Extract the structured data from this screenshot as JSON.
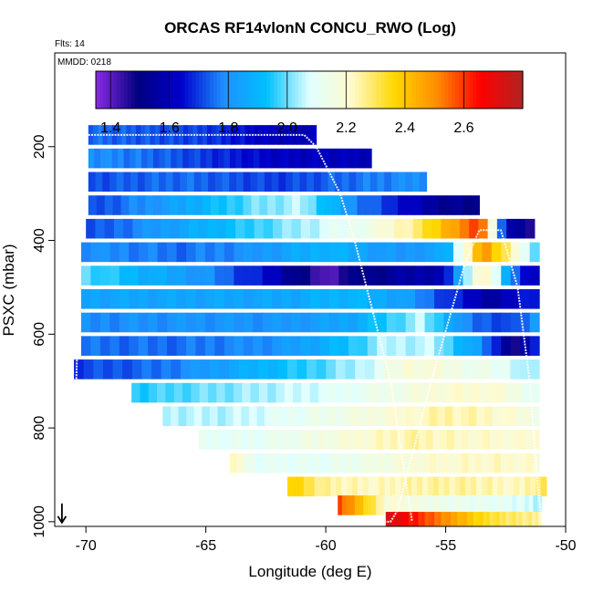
{
  "chart_data": {
    "type": "heatmap",
    "title": "ORCAS RF14vlonN CONCU_RWO (Log)",
    "flights_label": "Flts: 14",
    "date_label": "MMDD: 0218",
    "xlabel": "Longitude (deg E)",
    "ylabel": "PSXC (mbar)",
    "xlim": [
      -71.3,
      -50
    ],
    "ylim": [
      1010,
      0
    ],
    "xticks": [
      -70,
      -65,
      -60,
      -55,
      -50
    ],
    "yticks": [
      200,
      400,
      600,
      800,
      1000
    ],
    "colorbar": {
      "range": [
        1.35,
        2.8
      ],
      "ticks": [
        1.4,
        1.6,
        1.8,
        2.0,
        2.2,
        2.4,
        2.6
      ],
      "colors": [
        "#8a2be2",
        "#000080",
        "#0000cd",
        "#1e90ff",
        "#00bfff",
        "#e0ffff",
        "#fffacd",
        "#ffd700",
        "#ff8c00",
        "#ff0000",
        "#b22222"
      ]
    },
    "rows": [
      {
        "p": 175,
        "x0": -69.9,
        "x1": -60.4,
        "segments": [
          [
            -69.9,
            1.75
          ],
          [
            -65.0,
            1.7
          ],
          [
            -62.0,
            1.6
          ],
          [
            -60.4,
            1.6
          ]
        ]
      },
      {
        "p": 225,
        "x0": -69.9,
        "x1": -58.1,
        "segments": [
          [
            -69.9,
            1.8
          ],
          [
            -66.0,
            1.72
          ],
          [
            -62.0,
            1.62
          ],
          [
            -58.1,
            1.6
          ]
        ]
      },
      {
        "p": 275,
        "x0": -69.9,
        "x1": -55.8,
        "segments": [
          [
            -69.9,
            1.72
          ],
          [
            -66.0,
            1.75
          ],
          [
            -62.0,
            1.7
          ],
          [
            -59.0,
            1.75
          ],
          [
            -55.8,
            1.8
          ]
        ]
      },
      {
        "p": 325,
        "x0": -69.9,
        "x1": -53.6,
        "segments": [
          [
            -69.9,
            1.7
          ],
          [
            -66.0,
            1.85
          ],
          [
            -63.0,
            2.0
          ],
          [
            -61.0,
            2.05
          ],
          [
            -59.0,
            1.8
          ],
          [
            -55.5,
            1.55
          ],
          [
            -53.6,
            1.5
          ]
        ]
      },
      {
        "p": 375,
        "x0": -70.0,
        "x1": -51.3,
        "segments": [
          [
            -70.0,
            1.7
          ],
          [
            -66.0,
            1.85
          ],
          [
            -62.0,
            2.0
          ],
          [
            -58.0,
            2.15
          ],
          [
            -56.0,
            2.3
          ],
          [
            -54.5,
            2.5
          ],
          [
            -53.5,
            2.6
          ],
          [
            -52.5,
            1.6
          ],
          [
            -51.3,
            1.45
          ]
        ]
      },
      {
        "p": 425,
        "x0": -70.2,
        "x1": -51.1,
        "segments": [
          [
            -70.2,
            1.8
          ],
          [
            -66.0,
            1.75
          ],
          [
            -63.0,
            1.8
          ],
          [
            -60.0,
            1.9
          ],
          [
            -57.0,
            1.8
          ],
          [
            -55.0,
            1.85
          ],
          [
            -53.5,
            2.5
          ],
          [
            -52.0,
            2.2
          ],
          [
            -51.1,
            1.9
          ]
        ]
      },
      {
        "p": 475,
        "x0": -70.2,
        "x1": -51.1,
        "segments": [
          [
            -70.2,
            2.0
          ],
          [
            -68.0,
            1.9
          ],
          [
            -65.0,
            1.8
          ],
          [
            -62.0,
            1.6
          ],
          [
            -60.0,
            1.4
          ],
          [
            -59.0,
            1.5
          ],
          [
            -57.0,
            1.55
          ],
          [
            -55.0,
            1.6
          ],
          [
            -53.5,
            2.3
          ],
          [
            -52.0,
            1.7
          ],
          [
            -51.1,
            1.6
          ]
        ]
      },
      {
        "p": 525,
        "x0": -70.2,
        "x1": -51.1,
        "segments": [
          [
            -70.2,
            1.85
          ],
          [
            -66.0,
            1.85
          ],
          [
            -62.0,
            1.85
          ],
          [
            -59.0,
            1.9
          ],
          [
            -57.0,
            1.85
          ],
          [
            -55.0,
            1.7
          ],
          [
            -53.0,
            1.55
          ],
          [
            -51.1,
            1.7
          ]
        ]
      },
      {
        "p": 575,
        "x0": -70.2,
        "x1": -51.1,
        "segments": [
          [
            -70.2,
            1.78
          ],
          [
            -66.0,
            1.8
          ],
          [
            -62.0,
            1.8
          ],
          [
            -59.0,
            1.85
          ],
          [
            -57.5,
            1.95
          ],
          [
            -56.0,
            2.05
          ],
          [
            -54.0,
            1.75
          ],
          [
            -52.0,
            1.7
          ],
          [
            -51.1,
            1.85
          ]
        ]
      },
      {
        "p": 625,
        "x0": -70.2,
        "x1": -51.1,
        "segments": [
          [
            -70.2,
            1.75
          ],
          [
            -66.0,
            1.75
          ],
          [
            -62.0,
            1.8
          ],
          [
            -59.5,
            1.9
          ],
          [
            -57.5,
            2.05
          ],
          [
            -55.5,
            2.05
          ],
          [
            -53.5,
            1.8
          ],
          [
            -52.0,
            1.45
          ],
          [
            -51.1,
            1.75
          ]
        ]
      },
      {
        "p": 675,
        "x0": -70.5,
        "x1": -51.1,
        "segments": [
          [
            -70.5,
            1.7
          ],
          [
            -67.0,
            1.75
          ],
          [
            -64.0,
            1.85
          ],
          [
            -61.0,
            1.95
          ],
          [
            -58.5,
            2.05
          ],
          [
            -56.5,
            2.2
          ],
          [
            -54.5,
            2.15
          ],
          [
            -52.5,
            2.1
          ],
          [
            -51.1,
            2.0
          ]
        ]
      },
      {
        "p": 725,
        "x0": -68.1,
        "x1": -51.1,
        "segments": [
          [
            -68.1,
            1.95
          ],
          [
            -65.0,
            2.0
          ],
          [
            -62.0,
            2.05
          ],
          [
            -59.0,
            2.1
          ],
          [
            -57.0,
            2.15
          ],
          [
            -55.0,
            2.2
          ],
          [
            -53.0,
            2.2
          ],
          [
            -51.1,
            2.1
          ]
        ]
      },
      {
        "p": 775,
        "x0": -66.8,
        "x1": -51.1,
        "segments": [
          [
            -66.8,
            2.05
          ],
          [
            -64.0,
            2.05
          ],
          [
            -61.5,
            2.1
          ],
          [
            -59.0,
            2.15
          ],
          [
            -57.0,
            2.2
          ],
          [
            -55.0,
            2.25
          ],
          [
            -53.0,
            2.22
          ],
          [
            -51.1,
            2.15
          ]
        ]
      },
      {
        "p": 825,
        "x0": -65.3,
        "x1": -51.1,
        "segments": [
          [
            -65.3,
            2.1
          ],
          [
            -63.0,
            2.1
          ],
          [
            -60.5,
            2.15
          ],
          [
            -58.5,
            2.2
          ],
          [
            -56.5,
            2.25
          ],
          [
            -54.5,
            2.22
          ],
          [
            -52.5,
            2.2
          ],
          [
            -51.1,
            2.2
          ]
        ]
      },
      {
        "p": 875,
        "x0": -64.0,
        "x1": -51.1,
        "segments": [
          [
            -64.0,
            2.25
          ],
          [
            -63.0,
            2.1
          ],
          [
            -60.0,
            2.1
          ],
          [
            -58.0,
            2.15
          ],
          [
            -56.0,
            2.2
          ],
          [
            -53.0,
            2.22
          ],
          [
            -51.1,
            2.2
          ]
        ]
      },
      {
        "p": 925,
        "x0": -61.6,
        "x1": -50.8,
        "segments": [
          [
            -61.6,
            2.4
          ],
          [
            -60.0,
            2.25
          ],
          [
            -58.0,
            2.22
          ],
          [
            -56.0,
            2.25
          ],
          [
            -54.0,
            2.25
          ],
          [
            -52.0,
            2.22
          ],
          [
            -50.8,
            2.3
          ]
        ]
      },
      {
        "p": 965,
        "x0": -59.5,
        "x1": -51.0,
        "segments": [
          [
            -59.5,
            2.6
          ],
          [
            -58.5,
            2.4
          ],
          [
            -57.5,
            2.2
          ],
          [
            -56.0,
            2.15
          ],
          [
            -54.5,
            2.12
          ],
          [
            -52.5,
            2.1
          ],
          [
            -51.0,
            2.05
          ]
        ]
      },
      {
        "p": 1000,
        "x0": -57.5,
        "x1": -51.0,
        "segments": [
          [
            -57.5,
            2.75
          ],
          [
            -56.5,
            2.65
          ],
          [
            -55.5,
            2.55
          ],
          [
            -54.5,
            2.45
          ],
          [
            -53.5,
            2.35
          ],
          [
            -52.5,
            2.3
          ],
          [
            -51.0,
            2.25
          ]
        ]
      }
    ],
    "flight_tracks": [
      {
        "name": "track-1",
        "points": [
          [
            -69.9,
            175
          ],
          [
            -60.9,
            175
          ],
          [
            -60.4,
            200
          ],
          [
            -59.8,
            260
          ],
          [
            -59.4,
            300
          ],
          [
            -58.8,
            400
          ],
          [
            -58.3,
            500
          ],
          [
            -57.8,
            600
          ],
          [
            -57.3,
            700
          ],
          [
            -57.0,
            800
          ],
          [
            -56.7,
            900
          ],
          [
            -56.4,
            1000
          ]
        ]
      },
      {
        "name": "track-2",
        "points": [
          [
            -70.1,
            175
          ],
          [
            -70.3,
            500
          ],
          [
            -70.4,
            700
          ]
        ]
      },
      {
        "name": "track-3",
        "points": [
          [
            -57.8,
            1000
          ],
          [
            -57.3,
            1000
          ],
          [
            -57.0,
            975
          ],
          [
            -55.6,
            700
          ],
          [
            -54.2,
            450
          ],
          [
            -53.6,
            378
          ],
          [
            -52.7,
            378
          ],
          [
            -52.0,
            500
          ],
          [
            -51.5,
            700
          ],
          [
            -51.2,
            900
          ],
          [
            -51.0,
            1000
          ]
        ]
      }
    ],
    "wind_arrow": {
      "x": -71.0,
      "p": 1000
    }
  }
}
